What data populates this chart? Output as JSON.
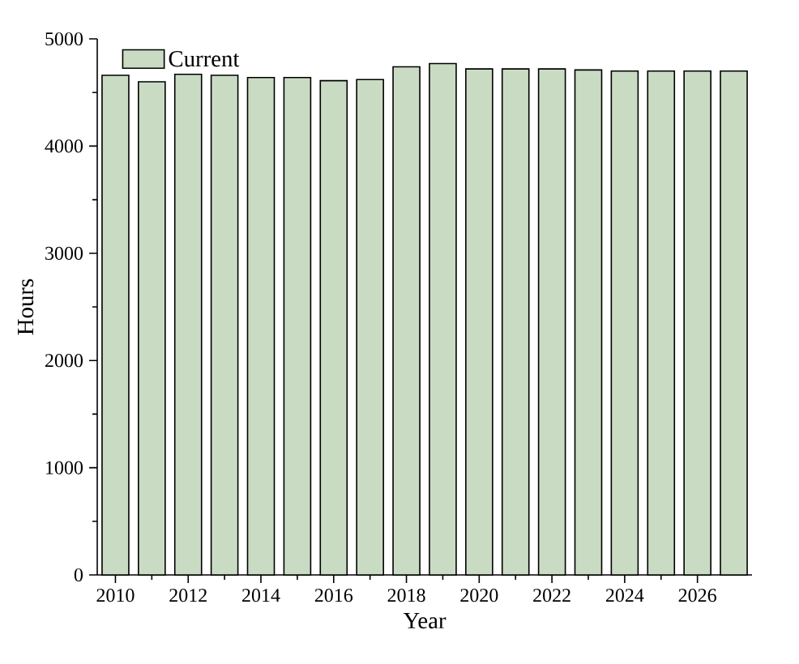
{
  "chart_data": {
    "type": "bar",
    "xlabel": "Year",
    "ylabel": "Hours",
    "x": [
      2010,
      2011,
      2012,
      2013,
      2014,
      2015,
      2016,
      2017,
      2018,
      2019,
      2020,
      2021,
      2022,
      2023,
      2024,
      2025,
      2026,
      2027
    ],
    "series": [
      {
        "name": "Current",
        "color": "#c9dcc3",
        "values": [
          4660,
          4600,
          4670,
          4660,
          4640,
          4640,
          4610,
          4620,
          4740,
          4770,
          4720,
          4720,
          4720,
          4710,
          4700,
          4700,
          4700,
          4700
        ]
      }
    ],
    "xlim": [
      2009.5,
      2027.5
    ],
    "xticks": [
      2010,
      2012,
      2014,
      2016,
      2018,
      2020,
      2022,
      2024,
      2026
    ],
    "ylim": [
      0,
      5000
    ],
    "yticks": [
      0,
      1000,
      2000,
      3000,
      4000,
      5000
    ],
    "legend": "top left"
  }
}
